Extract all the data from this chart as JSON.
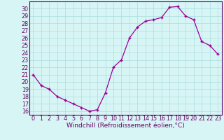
{
  "x": [
    0,
    1,
    2,
    3,
    4,
    5,
    6,
    7,
    8,
    9,
    10,
    11,
    12,
    13,
    14,
    15,
    16,
    17,
    18,
    19,
    20,
    21,
    22,
    23
  ],
  "y": [
    21,
    19.5,
    19,
    18,
    17.5,
    17,
    16.5,
    16,
    16.2,
    18.5,
    22,
    23,
    26,
    27.5,
    28.3,
    28.5,
    28.8,
    30.2,
    30.3,
    29,
    28.5,
    25.5,
    25,
    23.8
  ],
  "line_color": "#990099",
  "marker": "+",
  "bg_color": "#d8f5f5",
  "grid_color": "#aadddd",
  "xlabel": "Windchill (Refroidissement éolien,°C)",
  "ylim": [
    15.5,
    31
  ],
  "yticks": [
    16,
    17,
    18,
    19,
    20,
    21,
    22,
    23,
    24,
    25,
    26,
    27,
    28,
    29,
    30
  ],
  "xticks": [
    0,
    1,
    2,
    3,
    4,
    5,
    6,
    7,
    8,
    9,
    10,
    11,
    12,
    13,
    14,
    15,
    16,
    17,
    18,
    19,
    20,
    21,
    22,
    23
  ],
  "tick_color": "#660066",
  "spine_color": "#660066",
  "label_fontsize": 6.5,
  "tick_fontsize": 5.8
}
